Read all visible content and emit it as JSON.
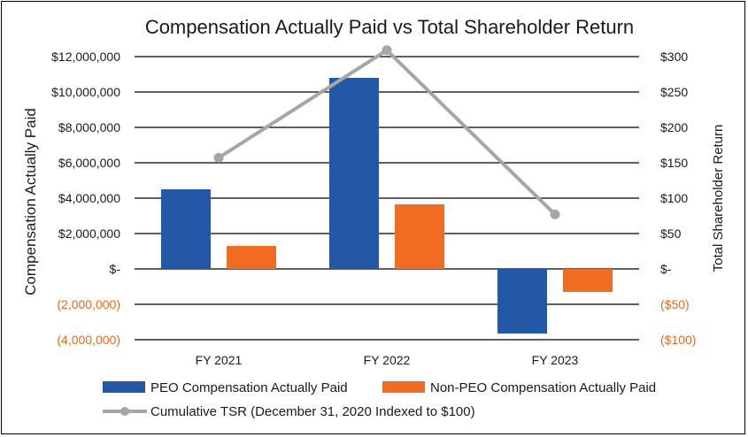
{
  "chart_data": {
    "type": "bar",
    "title": "Compensation Actually Paid vs Total Shareholder Return",
    "categories": [
      "FY 2021",
      "FY 2022",
      "FY 2023"
    ],
    "ylabel": "Compensation Actually Paid",
    "y2label": "Total Shareholder Return",
    "ylim": [
      -4000000,
      12000000
    ],
    "y2lim": [
      -100,
      300
    ],
    "yticks": [
      {
        "value": 12000000,
        "label": "$12,000,000",
        "negative": false
      },
      {
        "value": 10000000,
        "label": "$10,000,000",
        "negative": false
      },
      {
        "value": 8000000,
        "label": "$8,000,000",
        "negative": false
      },
      {
        "value": 6000000,
        "label": "$6,000,000",
        "negative": false
      },
      {
        "value": 4000000,
        "label": "$4,000,000",
        "negative": false
      },
      {
        "value": 2000000,
        "label": "$2,000,000",
        "negative": false
      },
      {
        "value": 0,
        "label": "$-",
        "negative": false
      },
      {
        "value": -2000000,
        "label": "(2,000,000)",
        "negative": true
      },
      {
        "value": -4000000,
        "label": "(4,000,000)",
        "negative": true
      }
    ],
    "y2ticks": [
      {
        "value": 300,
        "label": "$300",
        "negative": false
      },
      {
        "value": 250,
        "label": "$250",
        "negative": false
      },
      {
        "value": 200,
        "label": "$200",
        "negative": false
      },
      {
        "value": 150,
        "label": "$150",
        "negative": false
      },
      {
        "value": 100,
        "label": "$100",
        "negative": false
      },
      {
        "value": 50,
        "label": "$50",
        "negative": false
      },
      {
        "value": 0,
        "label": "$-",
        "negative": false
      },
      {
        "value": -50,
        "label": "($50)",
        "negative": true
      },
      {
        "value": -100,
        "label": "($100)",
        "negative": true
      }
    ],
    "series": [
      {
        "name": "PEO Compensation Actually Paid",
        "type": "bar",
        "color": "#2358a6",
        "values": [
          4500000,
          10800000,
          -3650000
        ]
      },
      {
        "name": "Non-PEO Compensation Actually Paid",
        "type": "bar",
        "color": "#f06c22",
        "values": [
          1300000,
          3650000,
          -1300000
        ]
      },
      {
        "name": "Cumulative TSR (December 31, 2020 Indexed to $100)",
        "type": "line",
        "axis": "right",
        "color": "#a6a6a6",
        "values": [
          157,
          309,
          77
        ]
      }
    ]
  }
}
